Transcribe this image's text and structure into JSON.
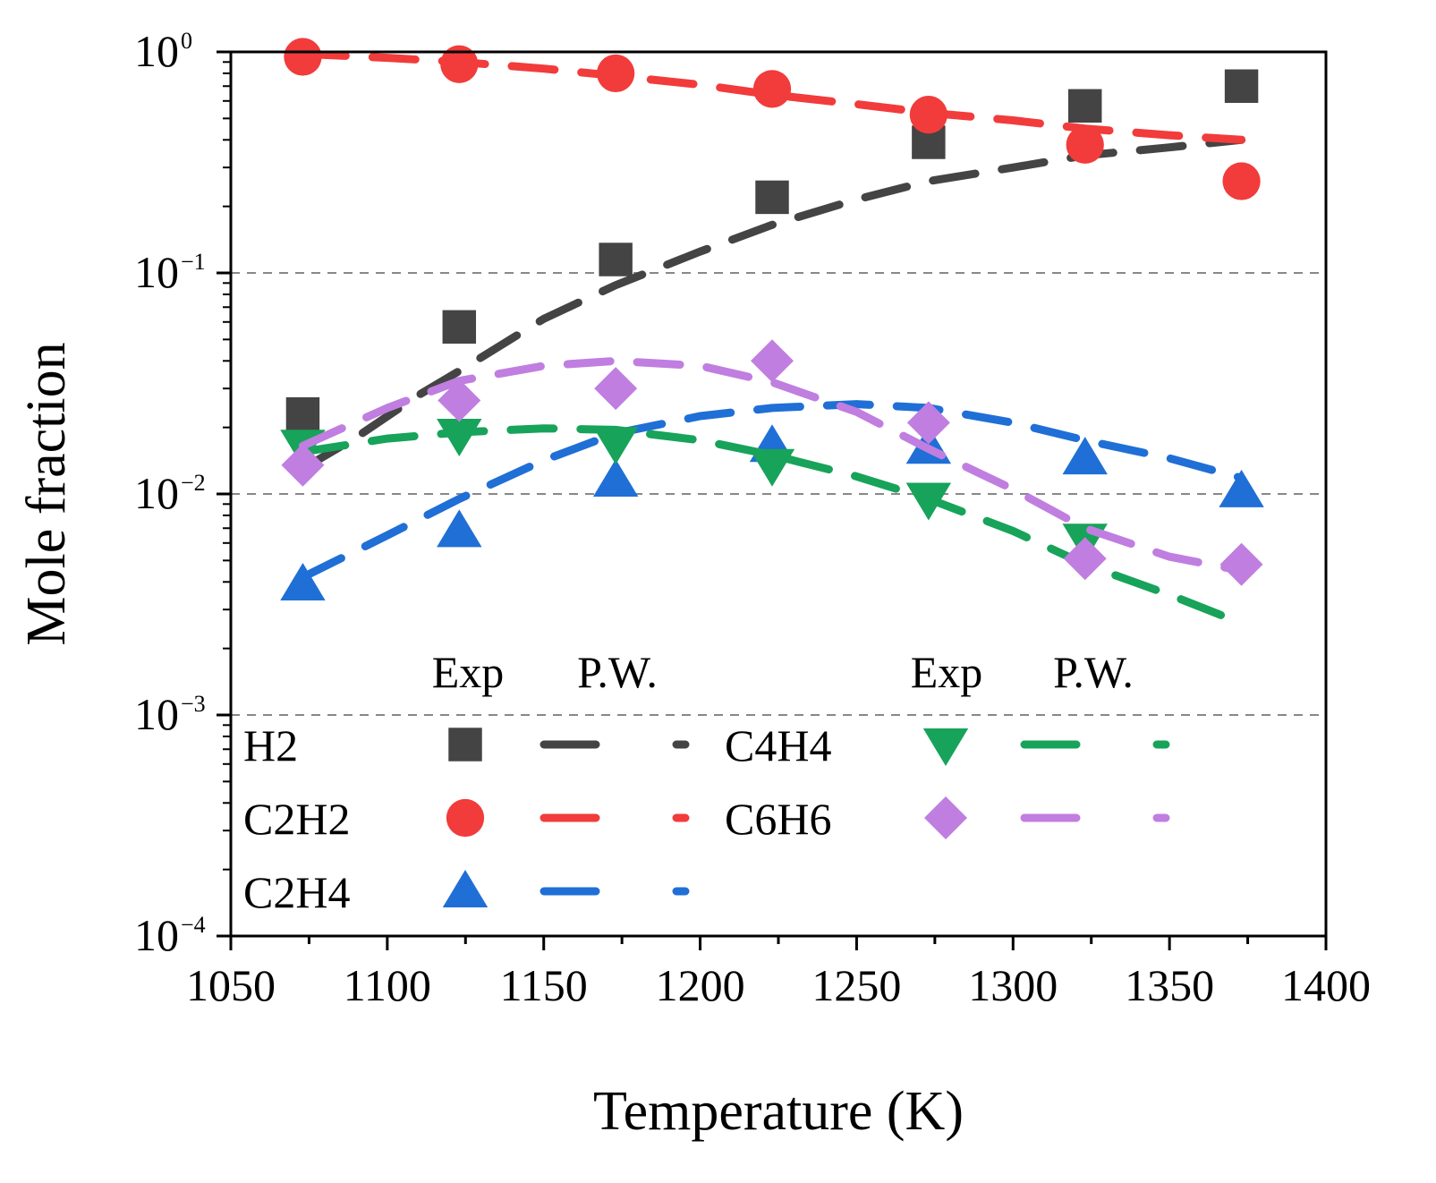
{
  "chart_data": {
    "type": "line",
    "xlabel": "Temperature (K)",
    "ylabel": "Mole fraction",
    "xlim": [
      1050,
      1400
    ],
    "ylim": [
      0.0001,
      1
    ],
    "yscale": "log",
    "x_ticks": [
      1050,
      1100,
      1150,
      1200,
      1250,
      1300,
      1350,
      1400
    ],
    "y_ticks": [
      {
        "value": 1,
        "base": "10",
        "exp": "0"
      },
      {
        "value": 0.1,
        "base": "10",
        "exp": "−1"
      },
      {
        "value": 0.01,
        "base": "10",
        "exp": "−2"
      },
      {
        "value": 0.001,
        "base": "10",
        "exp": "−3"
      },
      {
        "value": 0.0001,
        "base": "10",
        "exp": "−4"
      }
    ],
    "gridlines_y": [
      0.1,
      0.01,
      0.001
    ],
    "legend": {
      "placement": "bottom",
      "col_headers": [
        "Exp",
        "P.W.",
        "Exp",
        "P.W."
      ]
    },
    "series": [
      {
        "name": "H2",
        "color": "#444444",
        "marker": "square",
        "exp": {
          "x": [
            1073,
            1123,
            1173,
            1223,
            1273,
            1323,
            1373
          ],
          "y": [
            0.023,
            0.057,
            0.115,
            0.22,
            0.39,
            0.57,
            0.7
          ]
        },
        "model": {
          "x": [
            1073,
            1090,
            1110,
            1123,
            1150,
            1173,
            1200,
            1223,
            1250,
            1273,
            1300,
            1323,
            1350,
            1373
          ],
          "y": [
            0.013,
            0.018,
            0.028,
            0.036,
            0.062,
            0.088,
            0.125,
            0.165,
            0.215,
            0.26,
            0.3,
            0.34,
            0.37,
            0.4
          ]
        }
      },
      {
        "name": "C2H2",
        "color": "#f23b3b",
        "marker": "circle",
        "exp": {
          "x": [
            1073,
            1123,
            1173,
            1223,
            1273,
            1323,
            1373
          ],
          "y": [
            0.95,
            0.88,
            0.8,
            0.68,
            0.52,
            0.38,
            0.26
          ]
        },
        "model": {
          "x": [
            1073,
            1100,
            1123,
            1150,
            1173,
            1200,
            1223,
            1250,
            1273,
            1300,
            1323,
            1350,
            1373
          ],
          "y": [
            0.98,
            0.94,
            0.9,
            0.84,
            0.78,
            0.71,
            0.64,
            0.58,
            0.53,
            0.49,
            0.45,
            0.42,
            0.4
          ]
        }
      },
      {
        "name": "C2H4",
        "color": "#1f6fd6",
        "marker": "triangle-up",
        "exp": {
          "x": [
            1073,
            1123,
            1173,
            1223,
            1273,
            1323,
            1373
          ],
          "y": [
            0.0039,
            0.0068,
            0.0115,
            0.0165,
            0.0162,
            0.0145,
            0.0103
          ]
        },
        "model": {
          "x": [
            1073,
            1100,
            1123,
            1150,
            1173,
            1200,
            1223,
            1250,
            1273,
            1300,
            1323,
            1350,
            1373
          ],
          "y": [
            0.0042,
            0.0065,
            0.0095,
            0.0142,
            0.0188,
            0.0225,
            0.0245,
            0.0255,
            0.0245,
            0.021,
            0.0175,
            0.0145,
            0.0118
          ]
        }
      },
      {
        "name": "C4H4",
        "color": "#17a35a",
        "marker": "triangle-down",
        "exp": {
          "x": [
            1073,
            1123,
            1173,
            1223,
            1273,
            1323
          ],
          "y": [
            0.0165,
            0.0185,
            0.017,
            0.0135,
            0.0095,
            0.0062
          ]
        },
        "model": {
          "x": [
            1073,
            1100,
            1123,
            1150,
            1173,
            1200,
            1223,
            1250,
            1273,
            1300,
            1323,
            1350,
            1373
          ],
          "y": [
            0.0155,
            0.0178,
            0.019,
            0.0198,
            0.0195,
            0.0175,
            0.015,
            0.012,
            0.0095,
            0.0068,
            0.0048,
            0.0035,
            0.0026
          ]
        }
      },
      {
        "name": "C6H6",
        "color": "#c07ee0",
        "marker": "diamond",
        "exp": {
          "x": [
            1073,
            1123,
            1173,
            1223,
            1273,
            1323,
            1373
          ],
          "y": [
            0.0135,
            0.0265,
            0.03,
            0.04,
            0.021,
            0.0051,
            0.0048
          ]
        },
        "model": {
          "x": [
            1073,
            1100,
            1123,
            1150,
            1173,
            1200,
            1223,
            1250,
            1273,
            1300,
            1323,
            1350,
            1373
          ],
          "y": [
            0.0165,
            0.0245,
            0.0325,
            0.038,
            0.04,
            0.038,
            0.032,
            0.0235,
            0.016,
            0.0105,
            0.007,
            0.0052,
            0.0045
          ]
        }
      }
    ]
  }
}
